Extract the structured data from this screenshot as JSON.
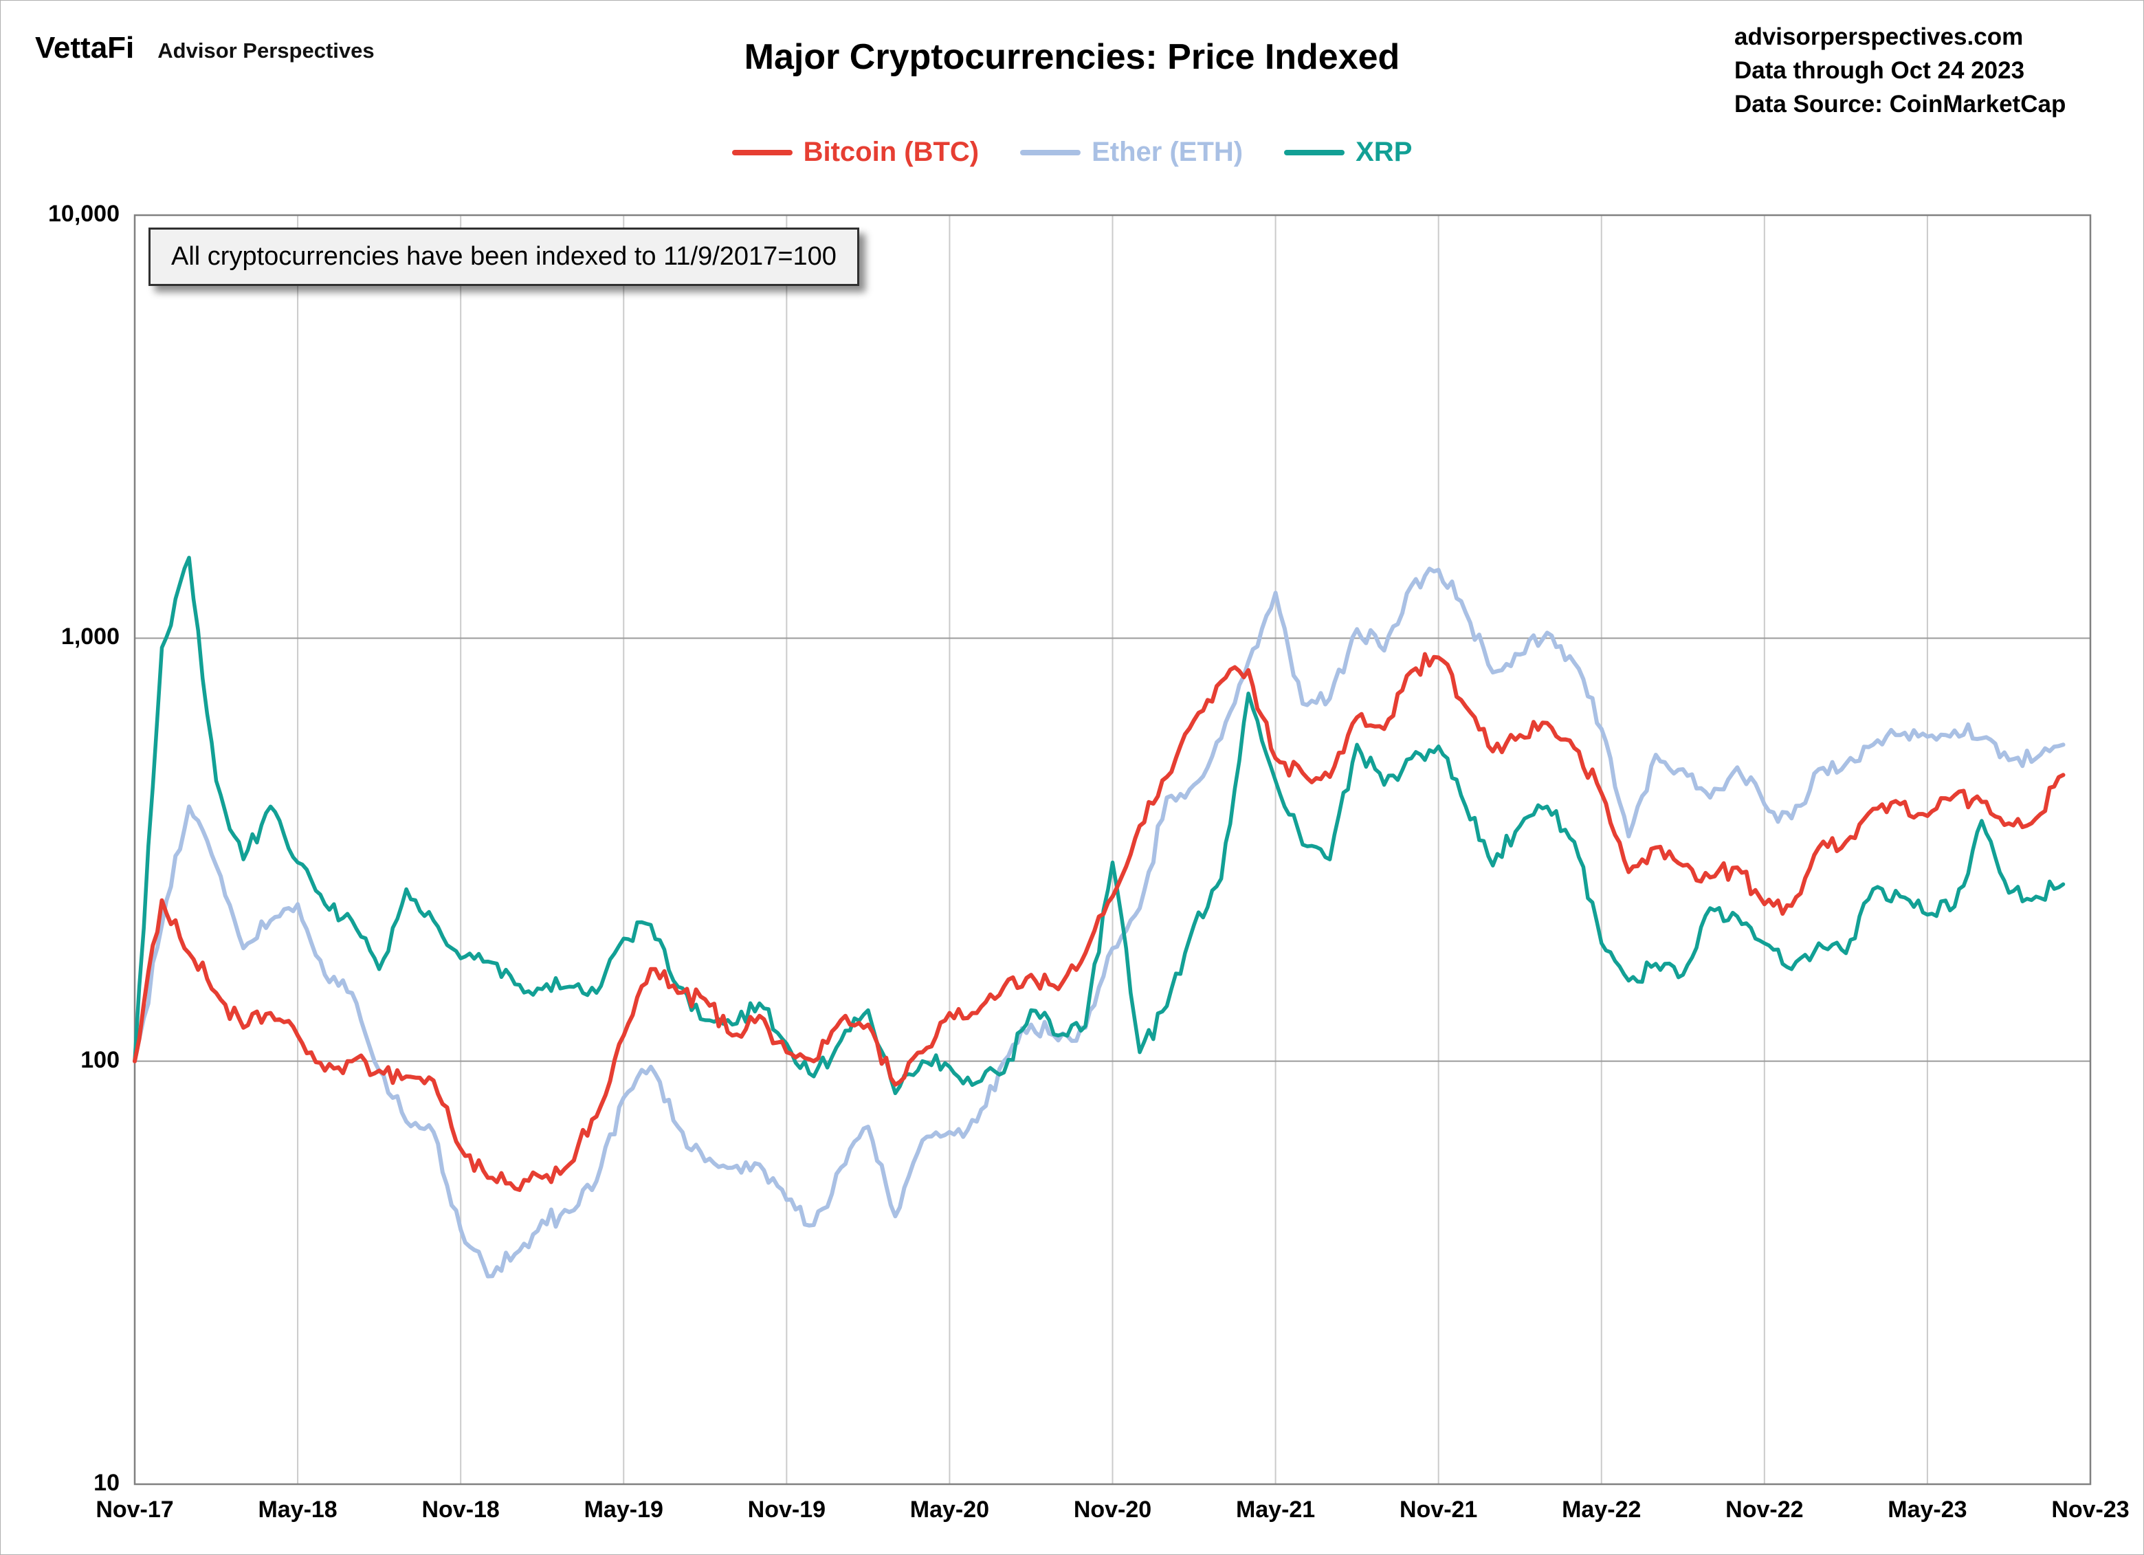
{
  "header": {
    "logo": "VettaFi",
    "logo_sub": "Advisor Perspectives",
    "title": "Major Cryptocurrencies: Price Indexed",
    "site": "advisorperspectives.com",
    "data_through": "Data through Oct 24 2023",
    "source": "Data Source: CoinMarketCap"
  },
  "annotation": "All cryptocurrencies have been indexed to 11/9/2017=100",
  "chart_data": {
    "type": "line",
    "title": "Major Cryptocurrencies: Price Indexed",
    "y_scale": "log",
    "ylim": [
      10,
      10000
    ],
    "y_ticks": [
      {
        "value": 10,
        "label": "10"
      },
      {
        "value": 100,
        "label": "100"
      },
      {
        "value": 1000,
        "label": "1,000"
      },
      {
        "value": 10000,
        "label": "10,000"
      }
    ],
    "x_unit": "months since Nov-2017, one value per month Nov-17 through Oct-23",
    "x_tick_labels": [
      "Nov-17",
      "May-18",
      "Nov-18",
      "May-19",
      "Nov-19",
      "May-20",
      "Nov-20",
      "May-21",
      "Nov-21",
      "May-22",
      "Nov-22",
      "May-23",
      "Nov-23"
    ],
    "grid": true,
    "legend_position": "top-center",
    "index_base": "11/9/2017=100",
    "series": [
      {
        "name": "Bitcoin (BTC)",
        "color": "#e63e32",
        "values": [
          100,
          240,
          180,
          145,
          120,
          130,
          115,
          95,
          100,
          95,
          92,
          90,
          62,
          53,
          50,
          53,
          57,
          74,
          115,
          165,
          145,
          140,
          115,
          128,
          105,
          100,
          125,
          122,
          88,
          105,
          130,
          130,
          150,
          160,
          148,
          180,
          245,
          360,
          470,
          640,
          790,
          840,
          520,
          480,
          470,
          650,
          610,
          835,
          900,
          690,
          540,
          590,
          630,
          550,
          430,
          280,
          320,
          290,
          272,
          287,
          235,
          233,
          320,
          330,
          395,
          405,
          380,
          425,
          410,
          365,
          375,
          475
        ]
      },
      {
        "name": "Ether (ETH)",
        "color": "#a9c0e4",
        "values": [
          100,
          210,
          400,
          290,
          185,
          215,
          235,
          160,
          145,
          95,
          72,
          68,
          40,
          31,
          35,
          42,
          44,
          52,
          82,
          97,
          70,
          58,
          56,
          57,
          47,
          41,
          56,
          70,
          43,
          65,
          68,
          72,
          100,
          122,
          112,
          120,
          185,
          230,
          420,
          450,
          580,
          880,
          1280,
          700,
          720,
          1050,
          935,
          1330,
          1450,
          1150,
          830,
          915,
          1030,
          875,
          610,
          340,
          530,
          490,
          420,
          495,
          405,
          375,
          490,
          505,
          560,
          590,
          585,
          605,
          580,
          515,
          520,
          560
        ]
      },
      {
        "name": "XRP",
        "color": "#12a095",
        "values": [
          100,
          950,
          1550,
          460,
          300,
          400,
          295,
          235,
          215,
          165,
          255,
          215,
          175,
          172,
          152,
          148,
          150,
          145,
          195,
          210,
          150,
          125,
          122,
          137,
          110,
          92,
          112,
          132,
          84,
          100,
          97,
          89,
          94,
          132,
          115,
          121,
          295,
          105,
          135,
          210,
          270,
          740,
          460,
          325,
          300,
          560,
          450,
          520,
          555,
          400,
          290,
          360,
          400,
          330,
          190,
          155,
          170,
          160,
          230,
          220,
          190,
          165,
          190,
          180,
          255,
          245,
          222,
          232,
          370,
          250,
          245,
          262
        ]
      }
    ]
  }
}
